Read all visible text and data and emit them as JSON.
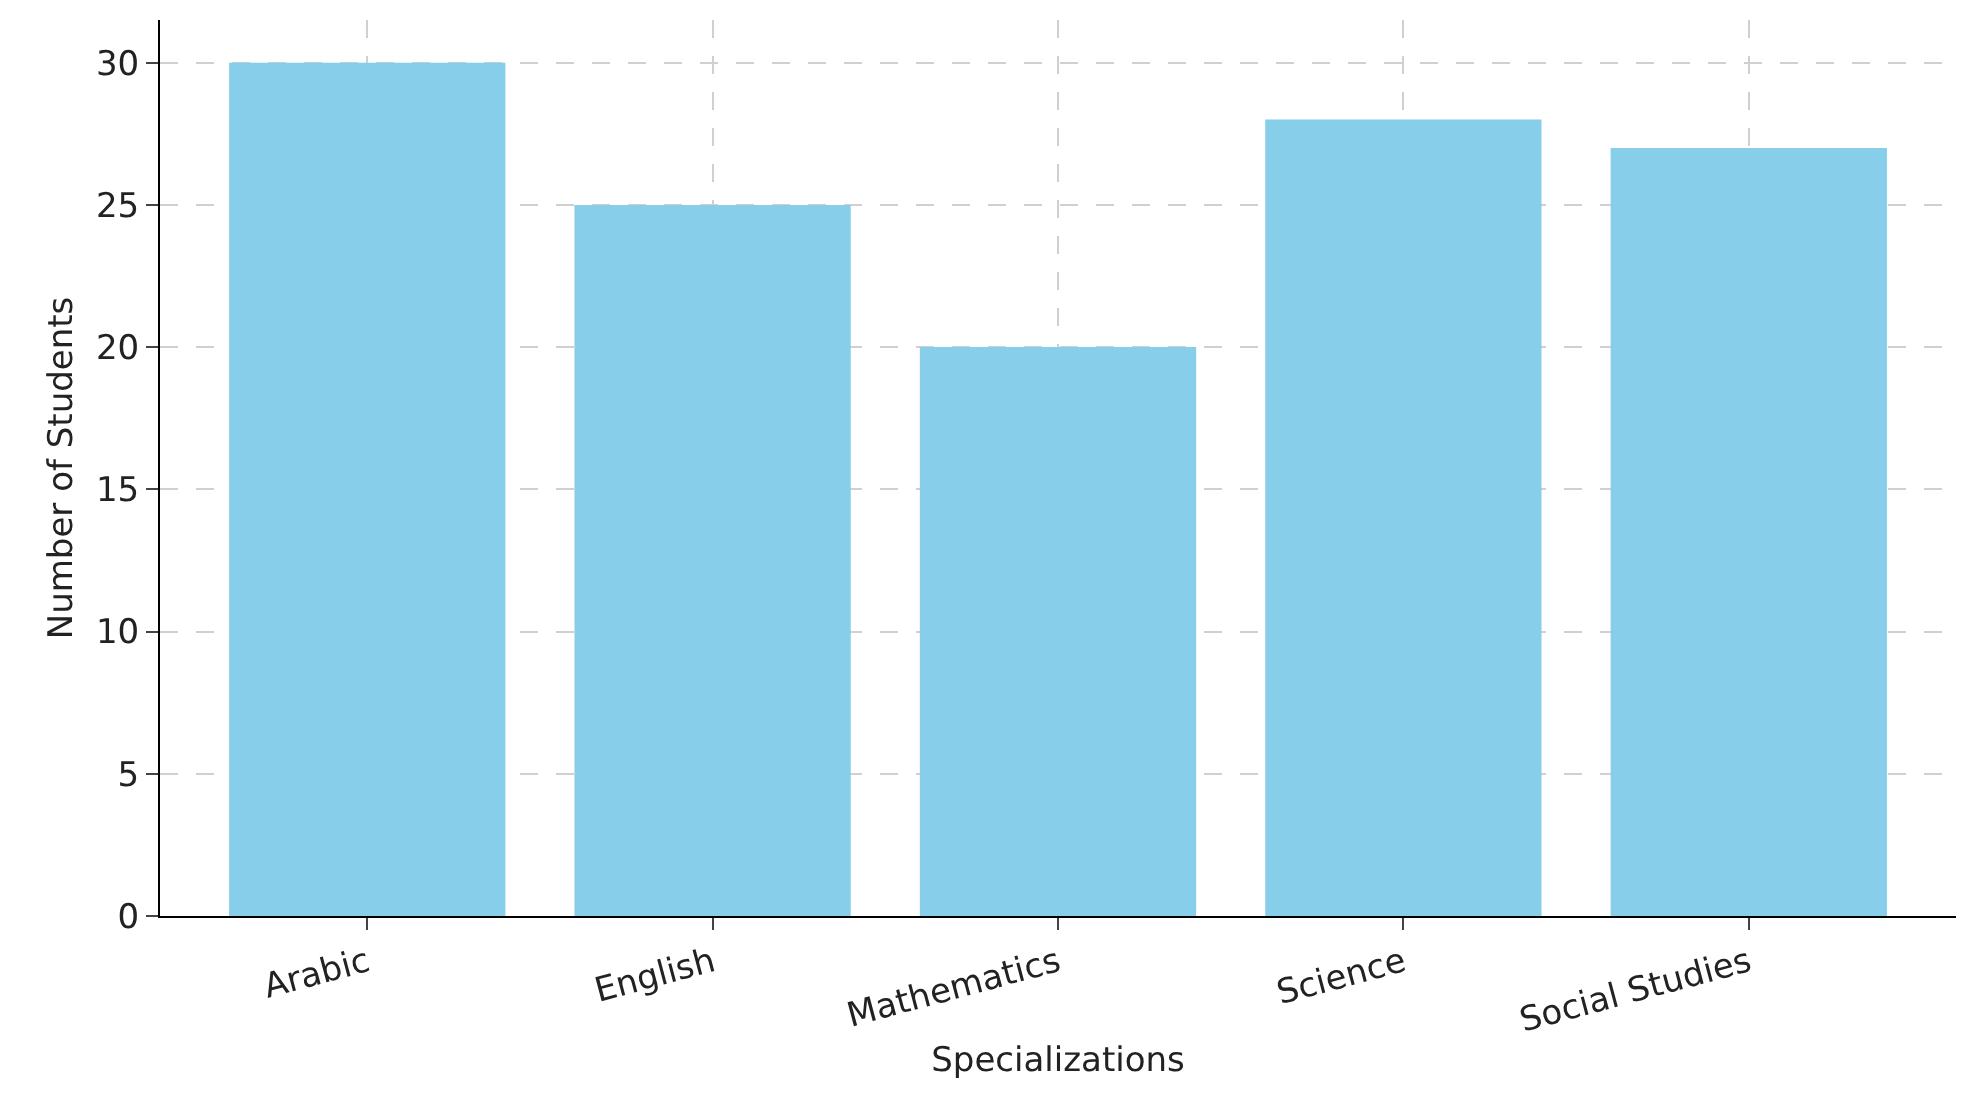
{
  "chart_data": {
    "type": "bar",
    "xlabel": "Specializations",
    "ylabel": "Number of Students",
    "categories": [
      "Arabic",
      "English",
      "Mathematics",
      "Science",
      "Social Studies"
    ],
    "values": [
      30,
      25,
      20,
      28,
      27
    ],
    "color": "#87ceeb",
    "ylim": [
      0,
      31.5
    ],
    "yticks": [
      0,
      5,
      10,
      15,
      20,
      25,
      30
    ],
    "grid": true
  }
}
